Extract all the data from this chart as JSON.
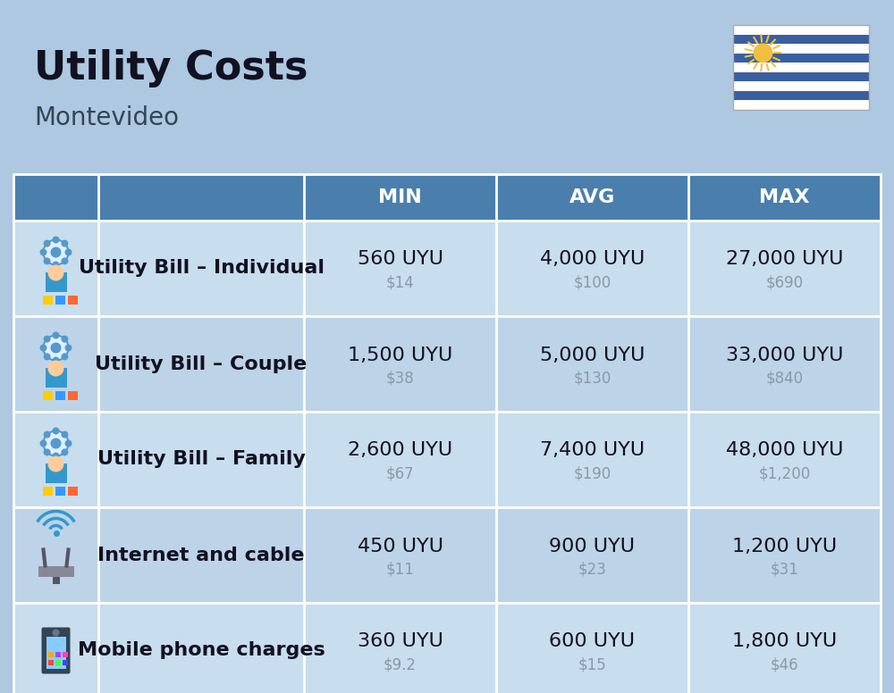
{
  "title": "Utility Costs",
  "subtitle": "Montevideo",
  "background_color": "#adc8e0",
  "header_color": "#4a7fad",
  "header_text_color": "#ffffff",
  "row_colors_alt": [
    "#c8dded",
    "#bdd3e8"
  ],
  "col_labels": [
    "MIN",
    "AVG",
    "MAX"
  ],
  "rows": [
    {
      "label": "Utility Bill – Individual",
      "min_uyu": "560 UYU",
      "min_usd": "$14",
      "avg_uyu": "4,000 UYU",
      "avg_usd": "$100",
      "max_uyu": "27,000 UYU",
      "max_usd": "$690"
    },
    {
      "label": "Utility Bill – Couple",
      "min_uyu": "1,500 UYU",
      "min_usd": "$38",
      "avg_uyu": "5,000 UYU",
      "avg_usd": "$130",
      "max_uyu": "33,000 UYU",
      "max_usd": "$840"
    },
    {
      "label": "Utility Bill – Family",
      "min_uyu": "2,600 UYU",
      "min_usd": "$67",
      "avg_uyu": "7,400 UYU",
      "avg_usd": "$190",
      "max_uyu": "48,000 UYU",
      "max_usd": "$1,200"
    },
    {
      "label": "Internet and cable",
      "min_uyu": "450 UYU",
      "min_usd": "$11",
      "avg_uyu": "900 UYU",
      "avg_usd": "$23",
      "max_uyu": "1,200 UYU",
      "max_usd": "$31"
    },
    {
      "label": "Mobile phone charges",
      "min_uyu": "360 UYU",
      "min_usd": "$9.2",
      "avg_uyu": "600 UYU",
      "avg_usd": "$15",
      "max_uyu": "1,800 UYU",
      "max_usd": "$46"
    }
  ],
  "uyu_fontsize": 16,
  "usd_fontsize": 12,
  "label_fontsize": 16,
  "header_fontsize": 16,
  "title_fontsize": 32,
  "subtitle_fontsize": 20,
  "usd_color": "#8899aa",
  "label_color": "#111122",
  "uyu_color": "#111122",
  "title_color": "#111122",
  "subtitle_color": "#334455",
  "flag_stripe_color": "#3a5fa0",
  "flag_sun_color": "#f0c040"
}
